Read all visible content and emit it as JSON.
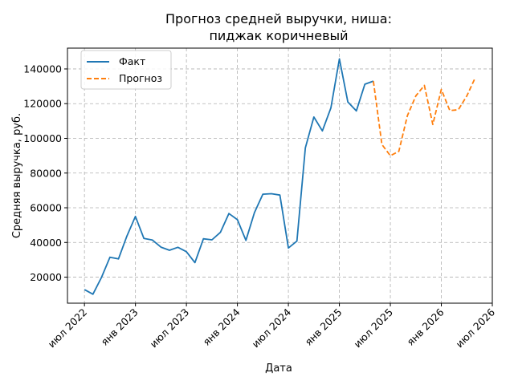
{
  "chart_data": {
    "type": "line",
    "title_line1": "Прогноз средней выручки, ниша:",
    "title_line2": "пиджак коричневый",
    "xlabel": "Дата",
    "ylabel": "Средняя выручка, руб.",
    "grid": true,
    "legend_position": "top-left",
    "x_tick_labels": [
      "июл 2022",
      "янв 2023",
      "июл 2023",
      "янв 2024",
      "июл 2024",
      "янв 2025",
      "июл 2025",
      "янв 2026",
      "июл 2026"
    ],
    "y_tick_labels": [
      "20000",
      "40000",
      "60000",
      "80000",
      "100000",
      "120000",
      "140000"
    ],
    "y_ticks": [
      20000,
      40000,
      60000,
      80000,
      100000,
      120000,
      140000
    ],
    "x_range": [
      "2022-05-01",
      "2026-07-01"
    ],
    "y_range": [
      5000,
      152000
    ],
    "series": [
      {
        "name": "Факт",
        "color": "#1f77b4",
        "style": "solid",
        "x": [
          "2022-07-01",
          "2022-08-01",
          "2022-09-01",
          "2022-10-01",
          "2022-11-01",
          "2022-12-01",
          "2023-01-01",
          "2023-02-01",
          "2023-03-01",
          "2023-04-01",
          "2023-05-01",
          "2023-06-01",
          "2023-07-01",
          "2023-08-01",
          "2023-09-01",
          "2023-10-01",
          "2023-11-01",
          "2023-12-01",
          "2024-01-01",
          "2024-02-01",
          "2024-03-01",
          "2024-04-01",
          "2024-05-01",
          "2024-06-01",
          "2024-07-01",
          "2024-08-01",
          "2024-09-01",
          "2024-10-01",
          "2024-11-01",
          "2024-12-01",
          "2025-01-01",
          "2025-02-01",
          "2025-03-01",
          "2025-04-01",
          "2025-05-01"
        ],
        "y": [
          12800,
          10200,
          19800,
          31500,
          30500,
          43800,
          55000,
          42300,
          41400,
          37300,
          35500,
          37200,
          34700,
          28400,
          42100,
          41500,
          45800,
          56700,
          53100,
          41200,
          57200,
          67800,
          68100,
          67300,
          36800,
          40800,
          94500,
          112300,
          104300,
          117500,
          145800,
          121000,
          115800,
          131200,
          133000
        ]
      },
      {
        "name": "Прогноз",
        "color": "#ff7f0e",
        "style": "dashed",
        "x": [
          "2025-05-01",
          "2025-06-01",
          "2025-07-01",
          "2025-08-01",
          "2025-09-01",
          "2025-10-01",
          "2025-11-01",
          "2025-12-01",
          "2026-01-01",
          "2026-02-01",
          "2026-03-01",
          "2026-04-01",
          "2026-05-01"
        ],
        "y": [
          133000,
          96500,
          90000,
          92500,
          113000,
          124500,
          130500,
          108000,
          128200,
          116000,
          116500,
          124500,
          135000
        ]
      }
    ]
  }
}
